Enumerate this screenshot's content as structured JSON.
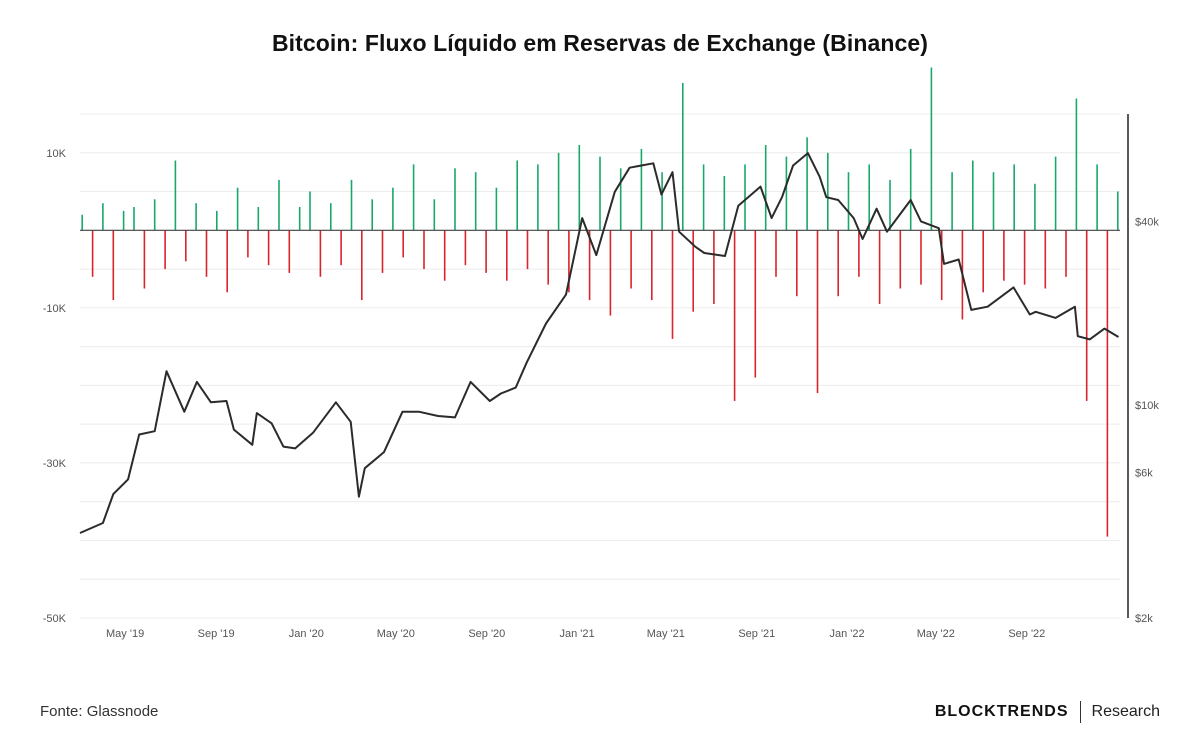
{
  "title": "Bitcoin: Fluxo Líquido em Reservas de Exchange (Binance)",
  "source": "Fonte: Glassnode",
  "brand": {
    "name": "BLOCKTRENDS",
    "sub": "Research"
  },
  "colors": {
    "inflow": "#1aa86a",
    "outflow": "#d9252b",
    "price": "#2b2b2b",
    "grid": "#ececec"
  },
  "chart_data": {
    "type": "bar",
    "title": "Bitcoin: Fluxo Líquido em Reservas de Exchange (Binance)",
    "xlabel": "",
    "ylabel": "",
    "x_range": [
      "2019-03-01",
      "2023-01-05"
    ],
    "x_ticks": [
      {
        "date": "2019-05-01",
        "label": "May '19"
      },
      {
        "date": "2019-09-01",
        "label": "Sep '19"
      },
      {
        "date": "2020-01-01",
        "label": "Jan '20"
      },
      {
        "date": "2020-05-01",
        "label": "May '20"
      },
      {
        "date": "2020-09-01",
        "label": "Sep '20"
      },
      {
        "date": "2021-01-01",
        "label": "Jan '21"
      },
      {
        "date": "2021-05-01",
        "label": "May '21"
      },
      {
        "date": "2021-09-01",
        "label": "Sep '21"
      },
      {
        "date": "2022-01-01",
        "label": "Jan '22"
      },
      {
        "date": "2022-05-01",
        "label": "May '22"
      },
      {
        "date": "2022-09-01",
        "label": "Sep '22"
      }
    ],
    "y_left": {
      "range": [
        -50000,
        15000
      ],
      "ticks": [
        10000,
        -10000,
        -30000,
        -50000
      ],
      "tick_labels": [
        "10K",
        "-10K",
        "-30K",
        "-50K"
      ]
    },
    "y_right": {
      "scale": "log",
      "range": [
        2000,
        90000
      ],
      "ticks": [
        40000,
        10000,
        6000,
        2000
      ],
      "tick_labels": [
        "$40k",
        "$10k",
        "$6k",
        "$2k"
      ]
    },
    "grid": true,
    "legend": "none",
    "series": [
      {
        "type": "bar",
        "axis": "left",
        "x": [
          "2019-03-04",
          "2019-03-18",
          "2019-04-01",
          "2019-04-15",
          "2019-04-29",
          "2019-05-13",
          "2019-05-27",
          "2019-06-10",
          "2019-06-24",
          "2019-07-08",
          "2019-07-22",
          "2019-08-05",
          "2019-08-19",
          "2019-09-02",
          "2019-09-16",
          "2019-09-30",
          "2019-10-14",
          "2019-10-28",
          "2019-11-11",
          "2019-11-25",
          "2019-12-09",
          "2019-12-23",
          "2020-01-06",
          "2020-01-20",
          "2020-02-03",
          "2020-02-17",
          "2020-03-02",
          "2020-03-16",
          "2020-03-30",
          "2020-04-13",
          "2020-04-27",
          "2020-05-11",
          "2020-05-25",
          "2020-06-08",
          "2020-06-22",
          "2020-07-06",
          "2020-07-20",
          "2020-08-03",
          "2020-08-17",
          "2020-08-31",
          "2020-09-14",
          "2020-09-28",
          "2020-10-12",
          "2020-10-26",
          "2020-11-09",
          "2020-11-23",
          "2020-12-07",
          "2020-12-21",
          "2021-01-04",
          "2021-01-18",
          "2021-02-01",
          "2021-02-15",
          "2021-03-01",
          "2021-03-15",
          "2021-03-29",
          "2021-04-12",
          "2021-04-26",
          "2021-05-10",
          "2021-05-24",
          "2021-06-07",
          "2021-06-21",
          "2021-07-05",
          "2021-07-19",
          "2021-08-02",
          "2021-08-16",
          "2021-08-30",
          "2021-09-13",
          "2021-09-27",
          "2021-10-11",
          "2021-10-25",
          "2021-11-08",
          "2021-11-22",
          "2021-12-06",
          "2021-12-20",
          "2022-01-03",
          "2022-01-17",
          "2022-01-31",
          "2022-02-14",
          "2022-02-28",
          "2022-03-14",
          "2022-03-28",
          "2022-04-11",
          "2022-04-25",
          "2022-05-09",
          "2022-05-23",
          "2022-06-06",
          "2022-06-20",
          "2022-07-04",
          "2022-07-18",
          "2022-08-01",
          "2022-08-15",
          "2022-08-29",
          "2022-09-12",
          "2022-09-26",
          "2022-10-10",
          "2022-10-24",
          "2022-11-07",
          "2022-11-21",
          "2022-12-05",
          "2022-12-19",
          "2023-01-02"
        ],
        "values": [
          2000,
          -6000,
          3500,
          -9000,
          2500,
          3000,
          -7500,
          4000,
          -5000,
          9000,
          -4000,
          3500,
          -6000,
          2500,
          -8000,
          5500,
          -3500,
          3000,
          -4500,
          6500,
          -5500,
          3000,
          5000,
          -6000,
          3500,
          -4500,
          6500,
          -9000,
          4000,
          -5500,
          5500,
          -3500,
          8500,
          -5000,
          4000,
          -6500,
          8000,
          -4500,
          7500,
          -5500,
          5500,
          -6500,
          9000,
          -5000,
          8500,
          -7000,
          10000,
          -8000,
          11000,
          -9000,
          9500,
          -11000,
          8000,
          -7500,
          10500,
          -9000,
          7500,
          -14000,
          19000,
          -10500,
          8500,
          -9500,
          7000,
          -22000,
          8500,
          -19000,
          11000,
          -6000,
          9500,
          -8500,
          12000,
          -21000,
          10000,
          -8500,
          7500,
          -6000,
          8500,
          -9500,
          6500,
          -7500,
          10500,
          -7000,
          21000,
          -9000,
          7500,
          -11500,
          9000,
          -8000,
          7500,
          -6500,
          8500,
          -7000,
          6000,
          -7500,
          9500,
          -6000,
          17000,
          -22000,
          8500,
          -39500,
          5000
        ]
      },
      {
        "type": "line",
        "name": "",
        "axis": "right",
        "x": [
          "2019-03-01",
          "2019-04-01",
          "2019-04-15",
          "2019-05-05",
          "2019-05-20",
          "2019-06-10",
          "2019-06-26",
          "2019-07-20",
          "2019-08-06",
          "2019-08-25",
          "2019-09-15",
          "2019-09-25",
          "2019-10-20",
          "2019-10-26",
          "2019-11-15",
          "2019-12-01",
          "2019-12-17",
          "2020-01-10",
          "2020-02-10",
          "2020-03-01",
          "2020-03-12",
          "2020-03-20",
          "2020-04-15",
          "2020-05-10",
          "2020-06-01",
          "2020-06-27",
          "2020-07-20",
          "2020-08-10",
          "2020-09-05",
          "2020-09-20",
          "2020-10-10",
          "2020-10-25",
          "2020-11-20",
          "2020-12-17",
          "2021-01-08",
          "2021-01-27",
          "2021-02-21",
          "2021-03-13",
          "2021-04-14",
          "2021-04-25",
          "2021-05-10",
          "2021-05-19",
          "2021-06-10",
          "2021-06-22",
          "2021-07-20",
          "2021-08-07",
          "2021-09-06",
          "2021-09-21",
          "2021-10-05",
          "2021-10-20",
          "2021-11-09",
          "2021-11-25",
          "2021-12-04",
          "2021-12-20",
          "2022-01-10",
          "2022-01-22",
          "2022-02-10",
          "2022-02-24",
          "2022-03-28",
          "2022-04-11",
          "2022-05-05",
          "2022-05-12",
          "2022-06-01",
          "2022-06-18",
          "2022-07-10",
          "2022-08-14",
          "2022-09-05",
          "2022-09-13",
          "2022-10-10",
          "2022-11-05",
          "2022-11-09",
          "2022-11-25",
          "2022-12-15",
          "2023-01-03"
        ],
        "values": [
          3800,
          4100,
          5100,
          5700,
          8000,
          8200,
          12900,
          9500,
          11900,
          10200,
          10300,
          8300,
          7400,
          9400,
          8700,
          7300,
          7200,
          8100,
          10200,
          8800,
          5000,
          6200,
          7000,
          9500,
          9500,
          9200,
          9100,
          11900,
          10300,
          10900,
          11400,
          13800,
          18500,
          23000,
          41000,
          31000,
          50000,
          60000,
          62000,
          49000,
          58000,
          37000,
          33000,
          31500,
          30800,
          45000,
          52000,
          41000,
          48000,
          61000,
          67000,
          56000,
          48000,
          47000,
          41000,
          35000,
          44000,
          37000,
          47000,
          40000,
          38000,
          29000,
          30000,
          20500,
          21000,
          24300,
          19800,
          20200,
          19300,
          21000,
          16800,
          16400,
          17800,
          16700
        ]
      }
    ]
  }
}
